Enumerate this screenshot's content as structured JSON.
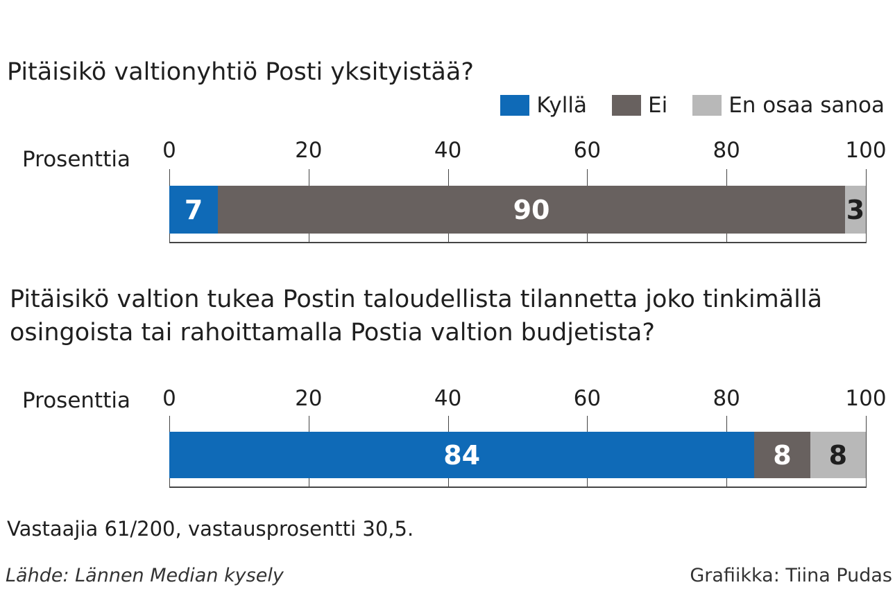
{
  "legend": [
    {
      "label": "Kyllä",
      "color": "#0f6ab7"
    },
    {
      "label": "Ei",
      "color": "#68615f"
    },
    {
      "label": "En osaa sanoa",
      "color": "#b8b8b8"
    }
  ],
  "chart_data": [
    {
      "type": "bar",
      "orientation": "horizontal",
      "stacked": true,
      "title": "Pitäisikö valtionyhtiö Posti yksityistää?",
      "xlabel": "Prosenttia",
      "xlim": [
        0,
        100
      ],
      "ticks": [
        0,
        20,
        40,
        60,
        80,
        100
      ],
      "grid": true,
      "legend_position": "top-right",
      "series": [
        {
          "name": "Kyllä",
          "values": [
            7
          ]
        },
        {
          "name": "Ei",
          "values": [
            90
          ]
        },
        {
          "name": "En osaa sanoa",
          "values": [
            3
          ]
        }
      ]
    },
    {
      "type": "bar",
      "orientation": "horizontal",
      "stacked": true,
      "title_lines": [
        "Pitäisikö valtion tukea Postin taloudellista tilannetta joko tinkimällä",
        "osingoista tai rahoittamalla Postia valtion budjetista?"
      ],
      "xlabel": "Prosenttia",
      "xlim": [
        0,
        100
      ],
      "ticks": [
        0,
        20,
        40,
        60,
        80,
        100
      ],
      "grid": true,
      "series": [
        {
          "name": "Kyllä",
          "values": [
            84
          ]
        },
        {
          "name": "Ei",
          "values": [
            8
          ]
        },
        {
          "name": "En osaa sanoa",
          "values": [
            8
          ]
        }
      ]
    }
  ],
  "footer": {
    "respondents": "Vastaajia 61/200, vastausprosentti 30,5.",
    "source": "Lähde: Lännen Median kysely",
    "credit": "Grafiikka: Tiina Pudas"
  }
}
